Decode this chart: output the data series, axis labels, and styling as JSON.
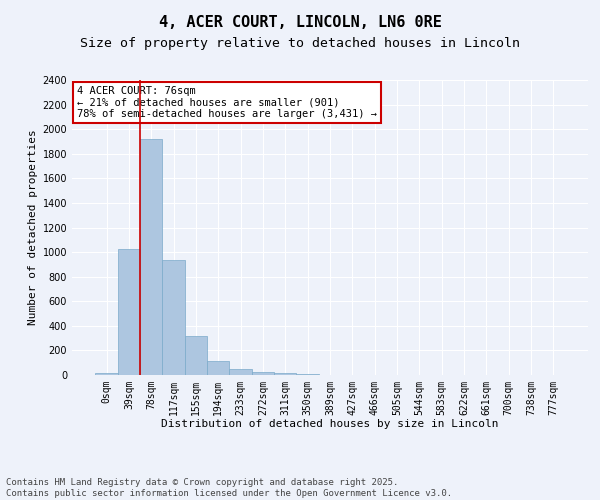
{
  "title": "4, ACER COURT, LINCOLN, LN6 0RE",
  "subtitle": "Size of property relative to detached houses in Lincoln",
  "xlabel": "Distribution of detached houses by size in Lincoln",
  "ylabel": "Number of detached properties",
  "bar_color": "#adc6e0",
  "bar_edge_color": "#7aaaca",
  "background_color": "#eef2fa",
  "grid_color": "#ffffff",
  "categories": [
    "0sqm",
    "39sqm",
    "78sqm",
    "117sqm",
    "155sqm",
    "194sqm",
    "233sqm",
    "272sqm",
    "311sqm",
    "350sqm",
    "389sqm",
    "427sqm",
    "466sqm",
    "505sqm",
    "544sqm",
    "583sqm",
    "622sqm",
    "661sqm",
    "700sqm",
    "738sqm",
    "777sqm"
  ],
  "values": [
    15,
    1025,
    1920,
    935,
    315,
    110,
    45,
    25,
    15,
    5,
    0,
    0,
    0,
    0,
    0,
    0,
    0,
    0,
    0,
    0,
    0
  ],
  "ylim": [
    0,
    2400
  ],
  "yticks": [
    0,
    200,
    400,
    600,
    800,
    1000,
    1200,
    1400,
    1600,
    1800,
    2000,
    2200,
    2400
  ],
  "property_bin_index": 2,
  "annotation_text": "4 ACER COURT: 76sqm\n← 21% of detached houses are smaller (901)\n78% of semi-detached houses are larger (3,431) →",
  "annotation_box_color": "#cc0000",
  "vline_color": "#cc0000",
  "footer_text": "Contains HM Land Registry data © Crown copyright and database right 2025.\nContains public sector information licensed under the Open Government Licence v3.0.",
  "title_fontsize": 11,
  "subtitle_fontsize": 9.5,
  "axis_label_fontsize": 8,
  "tick_fontsize": 7,
  "annotation_fontsize": 7.5,
  "footer_fontsize": 6.5
}
